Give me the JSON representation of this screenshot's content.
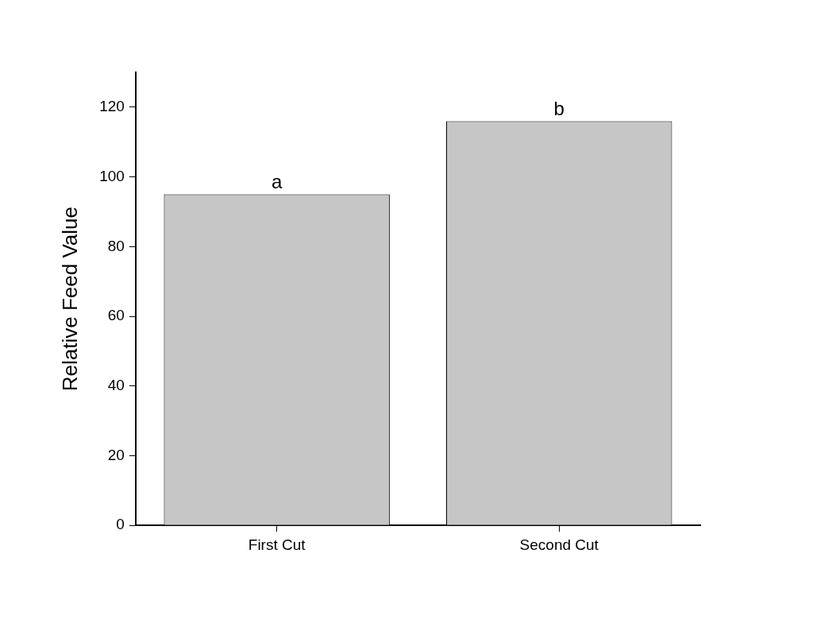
{
  "chart_data": {
    "type": "bar",
    "y_label": "Relative Feed Value",
    "categories": [
      "First Cut",
      "Second Cut"
    ],
    "values": [
      95,
      116
    ],
    "color": "#c6c6c6",
    "annotations": [
      {
        "category": "First Cut",
        "text": "a"
      },
      {
        "category": "Second Cut",
        "text": "b"
      }
    ],
    "ylim": [
      0,
      130
    ],
    "yticks": [
      0,
      20,
      40,
      60,
      80,
      100,
      120
    ],
    "grid": false
  }
}
